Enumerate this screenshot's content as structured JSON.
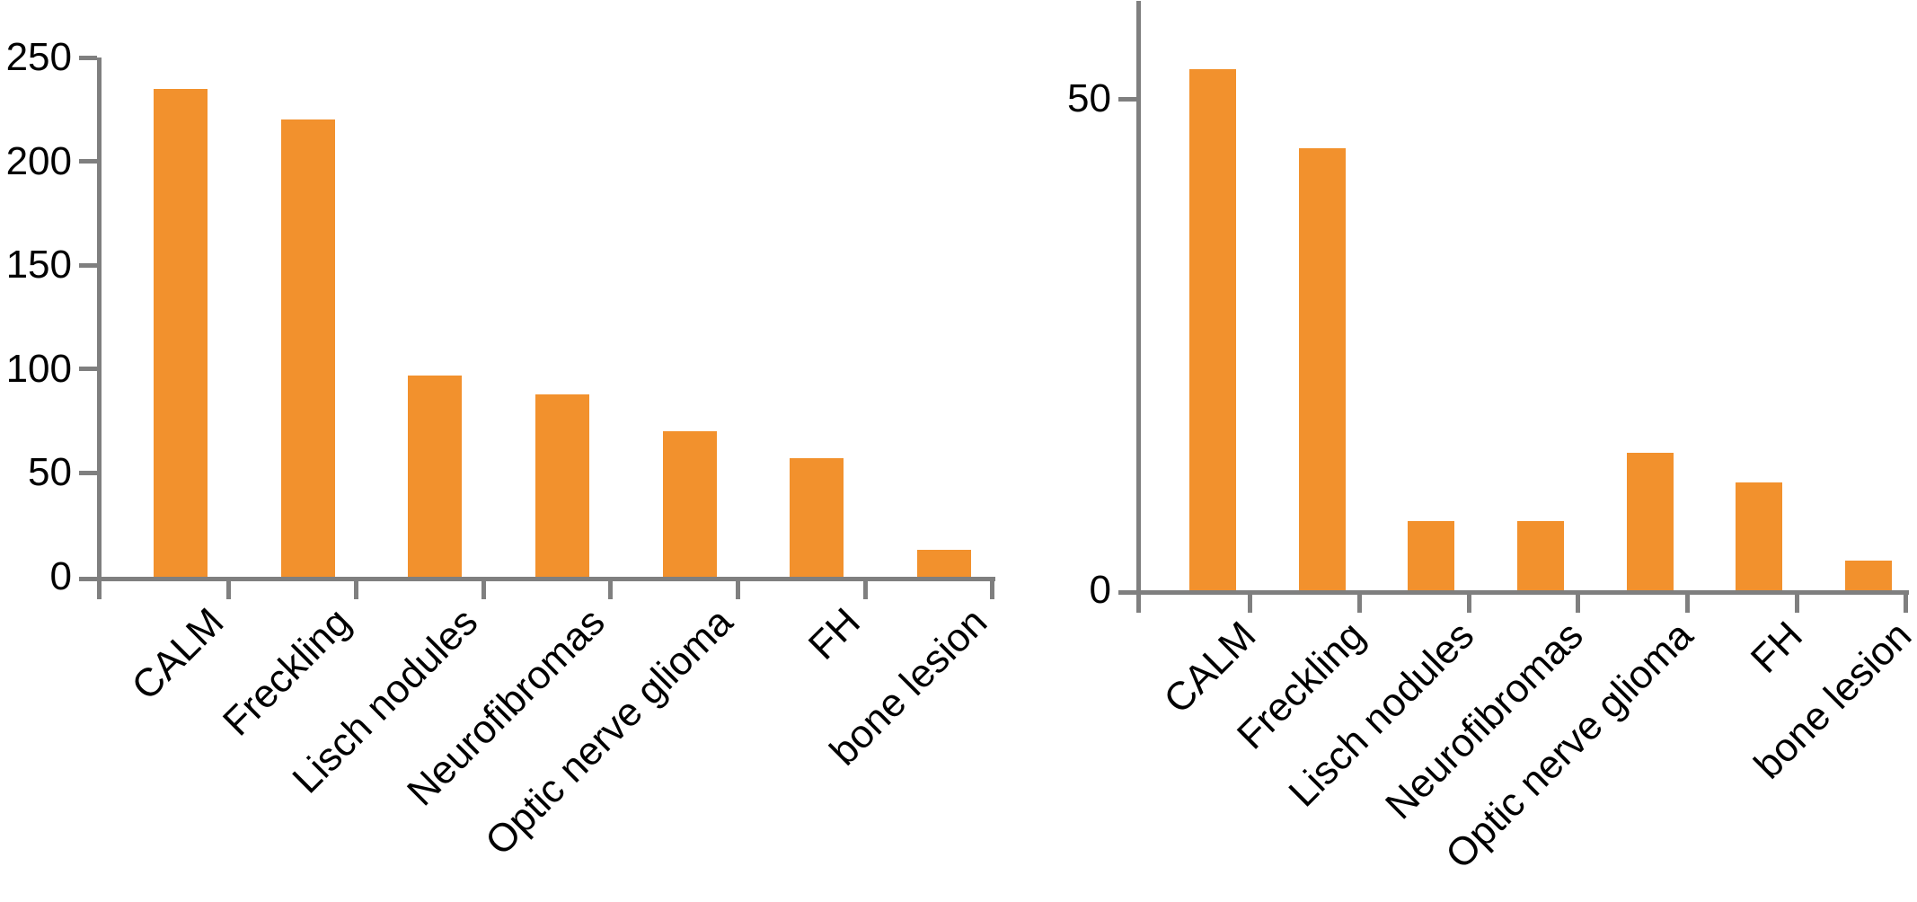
{
  "figure": {
    "description": "Two side-by-side vertical bar charts showing frequency of NF1 clinical features",
    "background_color": "#FFFFFF",
    "bar_color": "#F2912D",
    "axis_color": "#7F7F7F",
    "text_color": "#000000"
  },
  "chart_data": [
    {
      "type": "bar",
      "panel": "left",
      "title": "",
      "xlabel": "",
      "ylabel": "",
      "categories": [
        "CALM",
        "Freckling",
        "Lisch nodules",
        "Neurofibromas",
        "Optic nerve glioma",
        "FH",
        "bone lesion"
      ],
      "values": [
        235,
        220,
        97,
        88,
        70,
        57,
        13
      ],
      "yticks": [
        0,
        50,
        100,
        150,
        200,
        250
      ],
      "ylim": [
        0,
        250
      ],
      "grid": false,
      "legend": "none",
      "xtick_rotation": 45,
      "bar_color": "#F2912D",
      "axis_color": "#7F7F7F"
    },
    {
      "type": "bar",
      "panel": "right",
      "title": "",
      "xlabel": "",
      "ylabel": "",
      "categories": [
        "CALM",
        "Freckling",
        "Lisch nodules",
        "Neurofibromas",
        "Optic nerve glioma",
        "FH",
        "bone lesion"
      ],
      "values": [
        53,
        45,
        7,
        7,
        14,
        11,
        3
      ],
      "yticks": [
        0,
        50
      ],
      "ylim": [
        0,
        60
      ],
      "axis_top_clipped": true,
      "grid": false,
      "legend": "none",
      "xtick_rotation": 45,
      "bar_color": "#F2912D",
      "axis_color": "#7F7F7F"
    }
  ]
}
